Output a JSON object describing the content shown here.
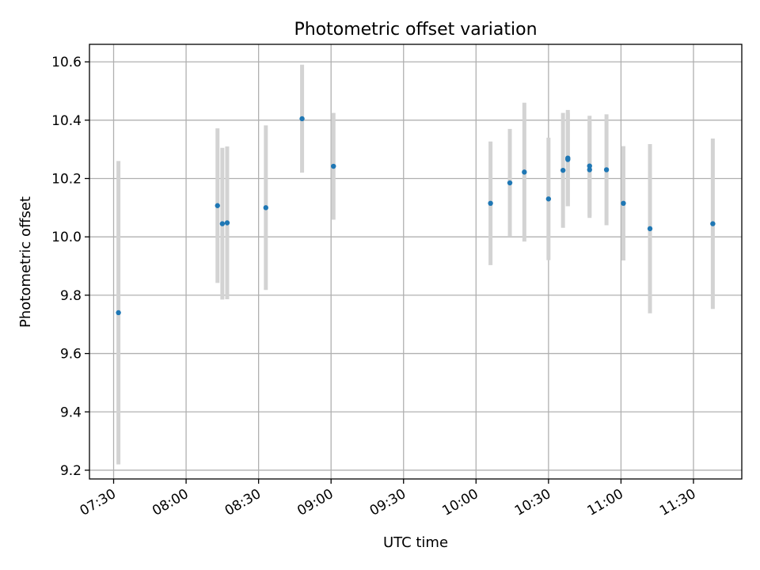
{
  "chart_data": {
    "type": "scatter",
    "title": "Photometric offset variation",
    "xlabel": "UTC time",
    "ylabel": "Photometric offset",
    "x_ticks": [
      "07:30",
      "08:00",
      "08:30",
      "09:00",
      "09:30",
      "10:00",
      "10:30",
      "11:00",
      "11:30"
    ],
    "y_ticks": [
      "9.2",
      "9.4",
      "9.6",
      "9.8",
      "10.0",
      "10.2",
      "10.4",
      "10.6"
    ],
    "xlim": [
      "07:20",
      "11:50"
    ],
    "ylim": [
      9.17,
      10.66
    ],
    "grid": true,
    "colors": {
      "point": "#1f77b4",
      "errorbar": "#d3d3d3",
      "grid": "#b0b0b0"
    },
    "points": [
      {
        "x": "07:32",
        "y": 9.74,
        "err": 0.52
      },
      {
        "x": "08:13",
        "y": 10.107,
        "err": 0.265
      },
      {
        "x": "08:15",
        "y": 10.045,
        "err": 0.26
      },
      {
        "x": "08:17",
        "y": 10.048,
        "err": 0.262
      },
      {
        "x": "08:33",
        "y": 10.1,
        "err": 0.282
      },
      {
        "x": "08:48",
        "y": 10.405,
        "err": 0.185
      },
      {
        "x": "09:01",
        "y": 10.242,
        "err": 0.183
      },
      {
        "x": "10:06",
        "y": 10.115,
        "err": 0.212
      },
      {
        "x": "10:14",
        "y": 10.185,
        "err": 0.185
      },
      {
        "x": "10:20",
        "y": 10.222,
        "err": 0.238
      },
      {
        "x": "10:30",
        "y": 10.13,
        "err": 0.21
      },
      {
        "x": "10:36",
        "y": 10.228,
        "err": 0.197
      },
      {
        "x": "10:38",
        "y": 10.265,
        "err": 0.16
      },
      {
        "x": "10:38",
        "y": 10.27,
        "err": 0.165
      },
      {
        "x": "10:47",
        "y": 10.23,
        "err": 0.165
      },
      {
        "x": "10:47",
        "y": 10.243,
        "err": 0.172
      },
      {
        "x": "10:54",
        "y": 10.23,
        "err": 0.19
      },
      {
        "x": "11:01",
        "y": 10.115,
        "err": 0.196
      },
      {
        "x": "11:12",
        "y": 10.028,
        "err": 0.29
      },
      {
        "x": "11:38",
        "y": 10.045,
        "err": 0.292
      }
    ]
  }
}
